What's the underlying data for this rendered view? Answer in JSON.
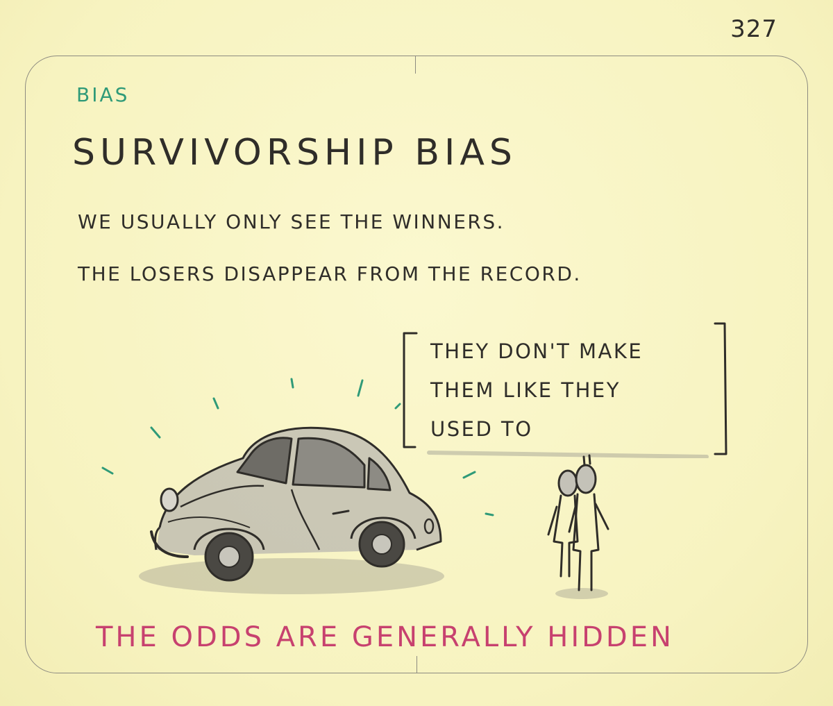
{
  "page_number": "327",
  "category": "BIAS",
  "title": "SURVIVORSHIP BIAS",
  "description": {
    "line1": "WE USUALLY ONLY SEE THE WINNERS.",
    "line2": "THE LOSERS DISAPPEAR FROM THE RECORD."
  },
  "speech_bubble": {
    "line1": "THEY DON'T MAKE",
    "line2": "THEM LIKE THEY",
    "line3": "USED TO"
  },
  "tagline": "THE ODDS ARE GENERALLY HIDDEN",
  "colors": {
    "paper": "#f9f6c6",
    "ink": "#2f2d29",
    "category_green": "#2f9a78",
    "tagline_pink": "#c7416f",
    "shine_teal": "#2f9a78"
  },
  "illustration": {
    "car_icon": "vintage-beetle-car-icon",
    "people_icon": "two-people-standing-icon"
  }
}
